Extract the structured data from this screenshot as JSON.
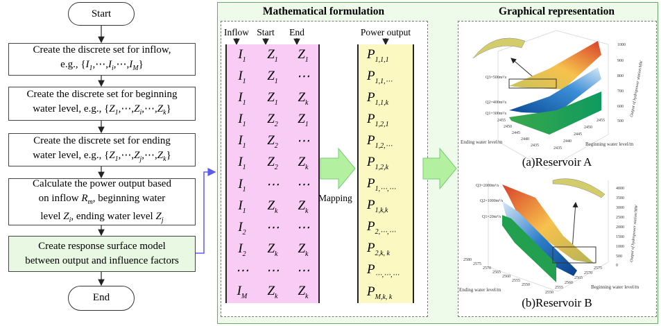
{
  "flow": {
    "start": "Start",
    "end": "End",
    "boxes": [
      {
        "lines": [
          [
            {
              "t": "Create the discrete set for inflow,"
            }
          ],
          [
            {
              "t": "e.g., {"
            },
            {
              "v": "I",
              "s": "1"
            },
            {
              "t": ",⋯,"
            },
            {
              "v": "I",
              "s": "i"
            },
            {
              "t": ",⋯,"
            },
            {
              "v": "I",
              "s": "M"
            },
            {
              "t": "}"
            }
          ]
        ]
      },
      {
        "lines": [
          [
            {
              "t": "Create the discrete set for beginning"
            }
          ],
          [
            {
              "t": "water level, e.g., {"
            },
            {
              "v": "Z",
              "s": "1"
            },
            {
              "t": ",⋯,"
            },
            {
              "v": "Z",
              "s": "i"
            },
            {
              "t": ",⋯,"
            },
            {
              "v": "Z",
              "s": "k"
            },
            {
              "t": "}"
            }
          ]
        ]
      },
      {
        "lines": [
          [
            {
              "t": "Create the discrete set for ending"
            }
          ],
          [
            {
              "t": "water level, e.g., {"
            },
            {
              "v": "Z",
              "s": "1"
            },
            {
              "t": ",⋯,"
            },
            {
              "v": "Z",
              "s": "j"
            },
            {
              "t": ",⋯,"
            },
            {
              "v": "Z",
              "s": "k"
            },
            {
              "t": "}"
            }
          ]
        ]
      },
      {
        "lines": [
          [
            {
              "t": "Calculate the power output based"
            }
          ],
          [
            {
              "t": "on inflow "
            },
            {
              "v": "R",
              "s": "m"
            },
            {
              "t": ", beginning water"
            }
          ],
          [
            {
              "t": "level "
            },
            {
              "v": "Z",
              "s": "i"
            },
            {
              "t": ", ending water level "
            },
            {
              "v": "Z",
              "s": "j"
            }
          ]
        ]
      },
      {
        "lines": [
          [
            {
              "t": "Create response surface model"
            }
          ],
          [
            {
              "t": "between output and influence factors"
            }
          ]
        ]
      }
    ]
  },
  "math": {
    "title": "Mathematical formulation",
    "col_headers": [
      "Inflow",
      "Start",
      "End"
    ],
    "power_header": "Power output",
    "mapping": "Mapping",
    "rows": [
      [
        {
          "v": "I",
          "s": "1"
        },
        {
          "v": "Z",
          "s": "1"
        },
        {
          "v": "Z",
          "s": "1"
        }
      ],
      [
        {
          "v": "I",
          "s": "1"
        },
        {
          "v": "Z",
          "s": "1"
        },
        {
          "v": "⋯",
          "s": ""
        }
      ],
      [
        {
          "v": "I",
          "s": "1"
        },
        {
          "v": "Z",
          "s": "1"
        },
        {
          "v": "Z",
          "s": "k"
        }
      ],
      [
        {
          "v": "I",
          "s": "1"
        },
        {
          "v": "Z",
          "s": "2"
        },
        {
          "v": "Z",
          "s": "1"
        }
      ],
      [
        {
          "v": "I",
          "s": "1"
        },
        {
          "v": "Z",
          "s": "2"
        },
        {
          "v": "⋯",
          "s": ""
        }
      ],
      [
        {
          "v": "I",
          "s": "1"
        },
        {
          "v": "Z",
          "s": "2"
        },
        {
          "v": "Z",
          "s": "k"
        }
      ],
      [
        {
          "v": "I",
          "s": "1"
        },
        {
          "v": "⋯",
          "s": ""
        },
        {
          "v": "⋯",
          "s": ""
        }
      ],
      [
        {
          "v": "I",
          "s": "1"
        },
        {
          "v": "Z",
          "s": "k"
        },
        {
          "v": "Z",
          "s": "k"
        }
      ],
      [
        {
          "v": "I",
          "s": "2"
        },
        {
          "v": "⋯",
          "s": ""
        },
        {
          "v": "⋯",
          "s": ""
        }
      ],
      [
        {
          "v": "I",
          "s": "2"
        },
        {
          "v": "Z",
          "s": "k"
        },
        {
          "v": "Z",
          "s": "k"
        }
      ],
      [
        {
          "v": "⋯",
          "s": ""
        },
        {
          "v": "⋯",
          "s": ""
        },
        {
          "v": "⋯",
          "s": ""
        }
      ],
      [
        {
          "v": "I",
          "s": "M"
        },
        {
          "v": "Z",
          "s": "k"
        },
        {
          "v": "Z",
          "s": "k"
        }
      ]
    ],
    "power": [
      {
        "v": "P",
        "s": "1,1,1"
      },
      {
        "v": "P",
        "s": "1,1,⋯"
      },
      {
        "v": "P",
        "s": "1,1,k"
      },
      {
        "v": "P",
        "s": "1,2,1"
      },
      {
        "v": "P",
        "s": "1,2,⋯"
      },
      {
        "v": "P",
        "s": "1,2,k"
      },
      {
        "v": "P",
        "s": "1,⋯,⋯"
      },
      {
        "v": "P",
        "s": "1,k,k"
      },
      {
        "v": "P",
        "s": "2,⋯,⋯"
      },
      {
        "v": "P",
        "s": "2,k, k"
      },
      {
        "v": "P",
        "s": "⋯,⋯,⋯"
      },
      {
        "v": "P",
        "s": "M,k, k"
      }
    ],
    "colors": {
      "matrix_bg": "#f8ccf5",
      "power_bg": "#fbf8c2",
      "panel_bg": "#eefaea",
      "arrow": "#b3f0a0"
    }
  },
  "graph": {
    "title": "Graphical representation",
    "a": {
      "caption": "(a)Reservoir A",
      "q": [
        "Q3=500m³/s",
        "Q2=400m³/s",
        "Q1=300m³/s"
      ],
      "zlabel": "Output of hydropower station/MW",
      "zticks": [
        "1000",
        "900",
        "800",
        "700",
        "600",
        "500"
      ],
      "xlabel": "Ending water level/m",
      "xticks": [
        "2455",
        "2450",
        "2445",
        "2440",
        "2435"
      ],
      "ylabel": "Beginning water level/m",
      "yticks": [
        "2435",
        "2440",
        "2445",
        "2450",
        "2455"
      ]
    },
    "b": {
      "caption": "(b)Reservoir B",
      "q": [
        "Q3=2000m³/s",
        "Q2=1000m³/s",
        "Q1=20m³/s"
      ],
      "zlabel": "Output of hydropower station/MW",
      "zticks": [
        "4000",
        "3500",
        "3000",
        "2500",
        "2000",
        "1500",
        "1000",
        "500",
        "0"
      ],
      "xlabel": "Ending water level/m",
      "xticks": [
        "2580",
        "2575",
        "2570",
        "2565",
        "2560",
        "2555",
        "2550"
      ],
      "ylabel": "Beginning water level/m",
      "yticks": [
        "2550",
        "2555",
        "2560",
        "2565",
        "2570",
        "2575"
      ]
    }
  }
}
